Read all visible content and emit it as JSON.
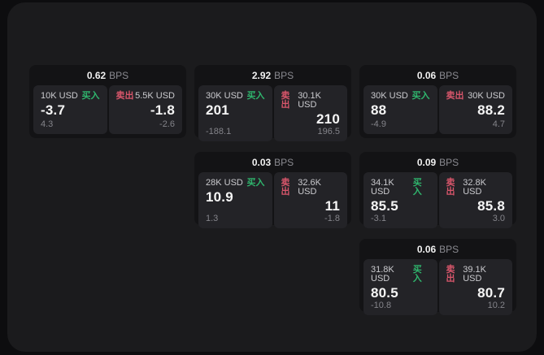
{
  "labels": {
    "bps": "BPS",
    "buy": "买入",
    "sell": "卖出"
  },
  "colors": {
    "page_bg": "#0d0d0f",
    "panel_bg": "#1b1b1d",
    "card_bg": "#131315",
    "tile_bg": "#232327",
    "buy_green": "#2fb56d",
    "sell_red": "#d8566b",
    "text_primary": "#f5f5f5",
    "text_secondary": "#cbcbcf",
    "text_muted": "#84848a"
  },
  "cards": [
    {
      "bps": "0.62",
      "buy": {
        "amount": "10K USD",
        "value": "-3.7",
        "sub": "4.3"
      },
      "sell": {
        "amount": "5.5K USD",
        "value": "-1.8",
        "sub": "-2.6"
      }
    },
    {
      "bps": "2.92",
      "buy": {
        "amount": "30K USD",
        "value": "201",
        "sub": "-188.1"
      },
      "sell": {
        "amount": "30.1K USD",
        "value": "210",
        "sub": "196.5"
      }
    },
    {
      "bps": "0.06",
      "buy": {
        "amount": "30K USD",
        "value": "88",
        "sub": "-4.9"
      },
      "sell": {
        "amount": "30K USD",
        "value": "88.2",
        "sub": "4.7"
      }
    },
    {
      "bps": "0.03",
      "buy": {
        "amount": "28K USD",
        "value": "10.9",
        "sub": "1.3"
      },
      "sell": {
        "amount": "32.6K USD",
        "value": "11",
        "sub": "-1.8"
      }
    },
    {
      "bps": "0.09",
      "buy": {
        "amount": "34.1K USD",
        "value": "85.5",
        "sub": "-3.1"
      },
      "sell": {
        "amount": "32.8K USD",
        "value": "85.8",
        "sub": "3.0"
      }
    },
    {
      "bps": "0.06",
      "buy": {
        "amount": "31.8K USD",
        "value": "80.5",
        "sub": "-10.8"
      },
      "sell": {
        "amount": "39.1K USD",
        "value": "80.7",
        "sub": "10.2"
      }
    }
  ]
}
